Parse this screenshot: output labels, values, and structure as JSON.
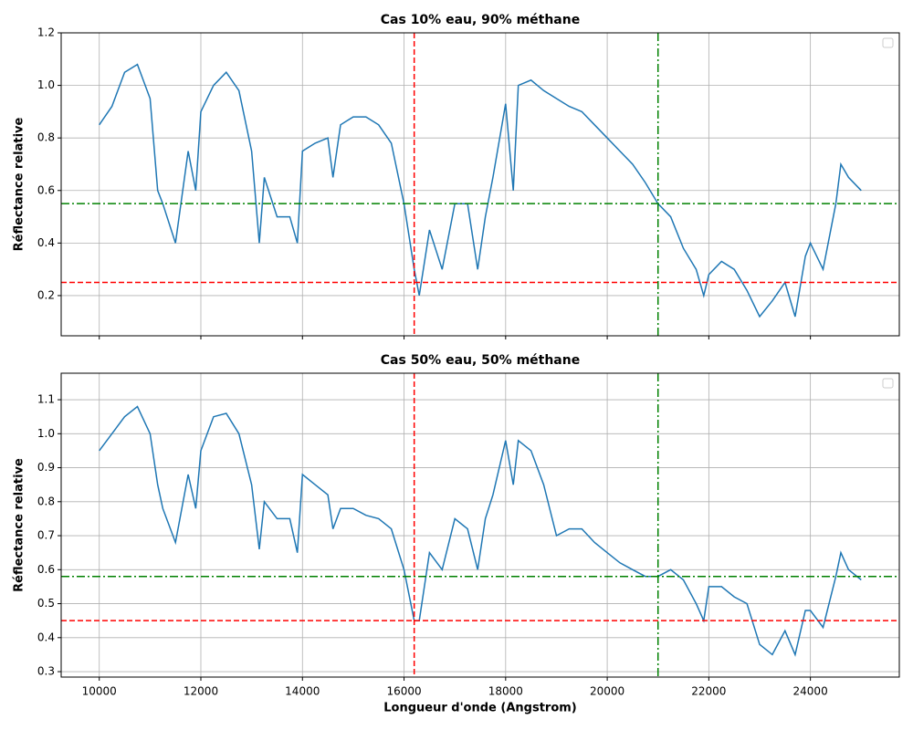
{
  "chart_data": [
    {
      "type": "line",
      "title": "Cas 10% eau, 90% méthane",
      "ylabel": "Réflectance relative",
      "x": [
        10000,
        10250,
        10500,
        10750,
        11000,
        11150,
        11250,
        11500,
        11750,
        11900,
        12000,
        12250,
        12500,
        12750,
        13000,
        13150,
        13250,
        13500,
        13750,
        13900,
        14000,
        14250,
        14500,
        14600,
        14750,
        15000,
        15250,
        15500,
        15750,
        16000,
        16200,
        16300,
        16500,
        16750,
        17000,
        17250,
        17450,
        17600,
        17750,
        18000,
        18150,
        18250,
        18500,
        18750,
        19000,
        19250,
        19500,
        19750,
        20000,
        20250,
        20500,
        20750,
        21000,
        21250,
        21500,
        21750,
        21900,
        22000,
        22250,
        22500,
        22750,
        23000,
        23250,
        23500,
        23700,
        23900,
        24000,
        24250,
        24500,
        24600,
        24750,
        25000
      ],
      "series": [
        {
          "color": "#1f77b4",
          "values": [
            0.85,
            0.92,
            1.05,
            1.08,
            0.95,
            0.6,
            0.55,
            0.4,
            0.75,
            0.6,
            0.9,
            1.0,
            1.05,
            0.98,
            0.75,
            0.4,
            0.65,
            0.5,
            0.5,
            0.4,
            0.75,
            0.78,
            0.8,
            0.65,
            0.85,
            0.88,
            0.88,
            0.85,
            0.78,
            0.55,
            0.3,
            0.2,
            0.45,
            0.3,
            0.55,
            0.55,
            0.3,
            0.5,
            0.65,
            0.93,
            0.6,
            1.0,
            1.02,
            0.98,
            0.95,
            0.92,
            0.9,
            0.85,
            0.8,
            0.75,
            0.7,
            0.63,
            0.55,
            0.5,
            0.38,
            0.3,
            0.2,
            0.28,
            0.33,
            0.3,
            0.22,
            0.12,
            0.18,
            0.25,
            0.12,
            0.35,
            0.4,
            0.3,
            0.55,
            0.7,
            0.65,
            0.6
          ]
        }
      ],
      "hlines": [
        {
          "value": 0.55,
          "color": "#008000",
          "style": "dashdot"
        },
        {
          "value": 0.25,
          "color": "#ff0000",
          "style": "dashed"
        }
      ],
      "vlines": [
        {
          "value": 16200,
          "color": "#ff0000",
          "style": "dashed"
        },
        {
          "value": 21000,
          "color": "#008000",
          "style": "dashdot"
        }
      ],
      "xlim": [
        9250,
        25750
      ],
      "xticks": [
        10000,
        12000,
        14000,
        16000,
        18000,
        20000,
        22000,
        24000
      ],
      "ylim": [
        0.047,
        1.2
      ],
      "yticks": [
        0.2,
        0.4,
        0.6,
        0.8,
        {
          "value": 1,
          "label": "1.0"
        },
        1.2
      ],
      "grid": true,
      "legend": "upper right"
    },
    {
      "type": "line",
      "title": "Cas 50% eau, 50% méthane",
      "ylabel": "Réflectance relative",
      "xlabel": "Longueur d'onde (Angstrom)",
      "x": [
        10000,
        10250,
        10500,
        10750,
        11000,
        11150,
        11250,
        11500,
        11750,
        11900,
        12000,
        12250,
        12500,
        12750,
        13000,
        13150,
        13250,
        13500,
        13750,
        13900,
        14000,
        14250,
        14500,
        14600,
        14750,
        15000,
        15250,
        15500,
        15750,
        16000,
        16200,
        16300,
        16500,
        16750,
        17000,
        17250,
        17450,
        17600,
        17750,
        18000,
        18150,
        18250,
        18500,
        18750,
        19000,
        19250,
        19500,
        19750,
        20000,
        20250,
        20500,
        20750,
        21000,
        21250,
        21500,
        21750,
        21900,
        22000,
        22250,
        22500,
        22750,
        23000,
        23250,
        23500,
        23700,
        23900,
        24000,
        24250,
        24500,
        24600,
        24750,
        25000
      ],
      "series": [
        {
          "color": "#1f77b4",
          "values": [
            0.95,
            1.0,
            1.05,
            1.08,
            1.0,
            0.85,
            0.78,
            0.68,
            0.88,
            0.78,
            0.95,
            1.05,
            1.06,
            1.0,
            0.85,
            0.66,
            0.8,
            0.75,
            0.75,
            0.65,
            0.88,
            0.85,
            0.82,
            0.72,
            0.78,
            0.78,
            0.76,
            0.75,
            0.72,
            0.6,
            0.45,
            0.45,
            0.65,
            0.6,
            0.75,
            0.72,
            0.6,
            0.75,
            0.82,
            0.98,
            0.85,
            0.98,
            0.95,
            0.85,
            0.7,
            0.72,
            0.72,
            0.68,
            0.65,
            0.62,
            0.6,
            0.58,
            0.58,
            0.6,
            0.57,
            0.5,
            0.45,
            0.55,
            0.55,
            0.52,
            0.5,
            0.38,
            0.35,
            0.42,
            0.35,
            0.48,
            0.48,
            0.43,
            0.58,
            0.65,
            0.6,
            0.57
          ]
        }
      ],
      "hlines": [
        {
          "value": 0.58,
          "color": "#008000",
          "style": "dashdot"
        },
        {
          "value": 0.45,
          "color": "#ff0000",
          "style": "dashed"
        }
      ],
      "vlines": [
        {
          "value": 16200,
          "color": "#ff0000",
          "style": "dashed"
        },
        {
          "value": 21000,
          "color": "#008000",
          "style": "dashdot"
        }
      ],
      "xlim": [
        9250,
        25750
      ],
      "xticks": [
        10000,
        12000,
        14000,
        16000,
        18000,
        20000,
        22000,
        24000
      ],
      "ylim": [
        0.284,
        1.178
      ],
      "yticks": [
        0.3,
        0.4,
        0.5,
        0.6,
        0.7,
        0.8,
        0.9,
        {
          "value": 1,
          "label": "1.0"
        },
        1.1
      ],
      "grid": true,
      "legend": "upper right"
    }
  ]
}
